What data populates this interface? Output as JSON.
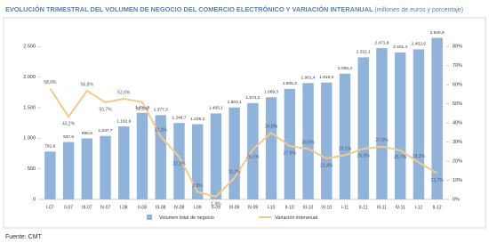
{
  "chart_data": {
    "type": "bar-line",
    "title": "EVOLUCIÓN TRIMESTRAL DEL VOLUMEN DE NEGOCIO DEL COMERCIO ELECTRÓNICO Y VARIACIÓN INTERANUAL",
    "subtitle": "(millones de euros y porcentaje)",
    "source": "Fuente: CMT",
    "categories": [
      "I-07",
      "II-07",
      "III-07",
      "IV-07",
      "I-08",
      "II-08",
      "III-08",
      "IV-08",
      "I-09",
      "II-09",
      "III-09",
      "IV-09",
      "I-10",
      "II-10",
      "III-10",
      "IV-10",
      "I-11",
      "II-11",
      "III-11",
      "IV-11",
      "I-12",
      "II-12"
    ],
    "series": [
      {
        "name": "Volumen total de negocio",
        "type": "bar",
        "color": "#8fb3db",
        "values": [
          781.8,
          937.6,
          996.8,
          1037.7,
          1192.9,
          1414.9,
          1377.3,
          1248.7,
          1229.2,
          1405.1,
          1503.1,
          1574.2,
          1669.3,
          1805.3,
          1901.4,
          1910.0,
          2055.4,
          2322.1,
          2471.8,
          2401.4,
          2452.6,
          2640.8
        ],
        "value_labels": [
          "781,8",
          "937,6",
          "996,8",
          "1.037,7",
          "1.192,9",
          "1.414,9",
          "1.377,3",
          "1.248,7",
          "1.229,2",
          "1.405,1",
          "1.503,1",
          "1.574,2",
          "1.669,3",
          "1.805,3",
          "1.901,4",
          "1.910,0",
          "2.055,4",
          "2.322,1",
          "2.471,8",
          "2.401,4",
          "2.452,6",
          "2.640,8"
        ]
      },
      {
        "name": "Variación interanual",
        "type": "line",
        "axis": "y2",
        "color": "#f5c98c",
        "values": [
          58.0,
          43.2,
          56.8,
          50.7,
          52.6,
          50.9,
          32.9,
          22.2,
          3.9,
          1.4,
          11.2,
          26.1,
          34.8,
          27.9,
          26.5,
          21.4,
          23.1,
          26.5,
          27.6,
          25.7,
          19.3,
          13.7
        ],
        "value_labels": [
          "58,0%",
          "43,2%",
          "56,8%",
          "50,7%",
          "52,6%",
          "50,9%",
          "32,9%",
          "22,2%",
          "3,9%",
          "1,4%",
          "11,2%",
          "26,1%",
          "34,8%",
          "27,9%",
          "26,5%",
          "21,4%",
          "23,1%",
          "26,5%",
          "27,6%",
          "25,7%",
          "19,3%",
          "13,7%"
        ]
      }
    ],
    "ylim": [
      0,
      2750
    ],
    "yticks": [
      0,
      500,
      {
        "value": 1000,
        "label": "1.000"
      },
      {
        "value": 1500,
        "label": "1.500"
      },
      {
        "value": 2000,
        "label": "2.000"
      },
      {
        "value": 2500,
        "label": "2.500"
      }
    ],
    "y2lim": [
      0,
      88
    ],
    "y2ticks": [
      {
        "value": 0,
        "label": "0%"
      },
      {
        "value": 10,
        "label": "10%"
      },
      {
        "value": 20,
        "label": "20%"
      },
      {
        "value": 30,
        "label": "30%"
      },
      {
        "value": 40,
        "label": "40%"
      },
      {
        "value": 50,
        "label": "50%"
      },
      {
        "value": 60,
        "label": "60%"
      },
      {
        "value": 70,
        "label": "70%"
      },
      {
        "value": 80,
        "label": "80%"
      }
    ],
    "legend": "bottom"
  }
}
